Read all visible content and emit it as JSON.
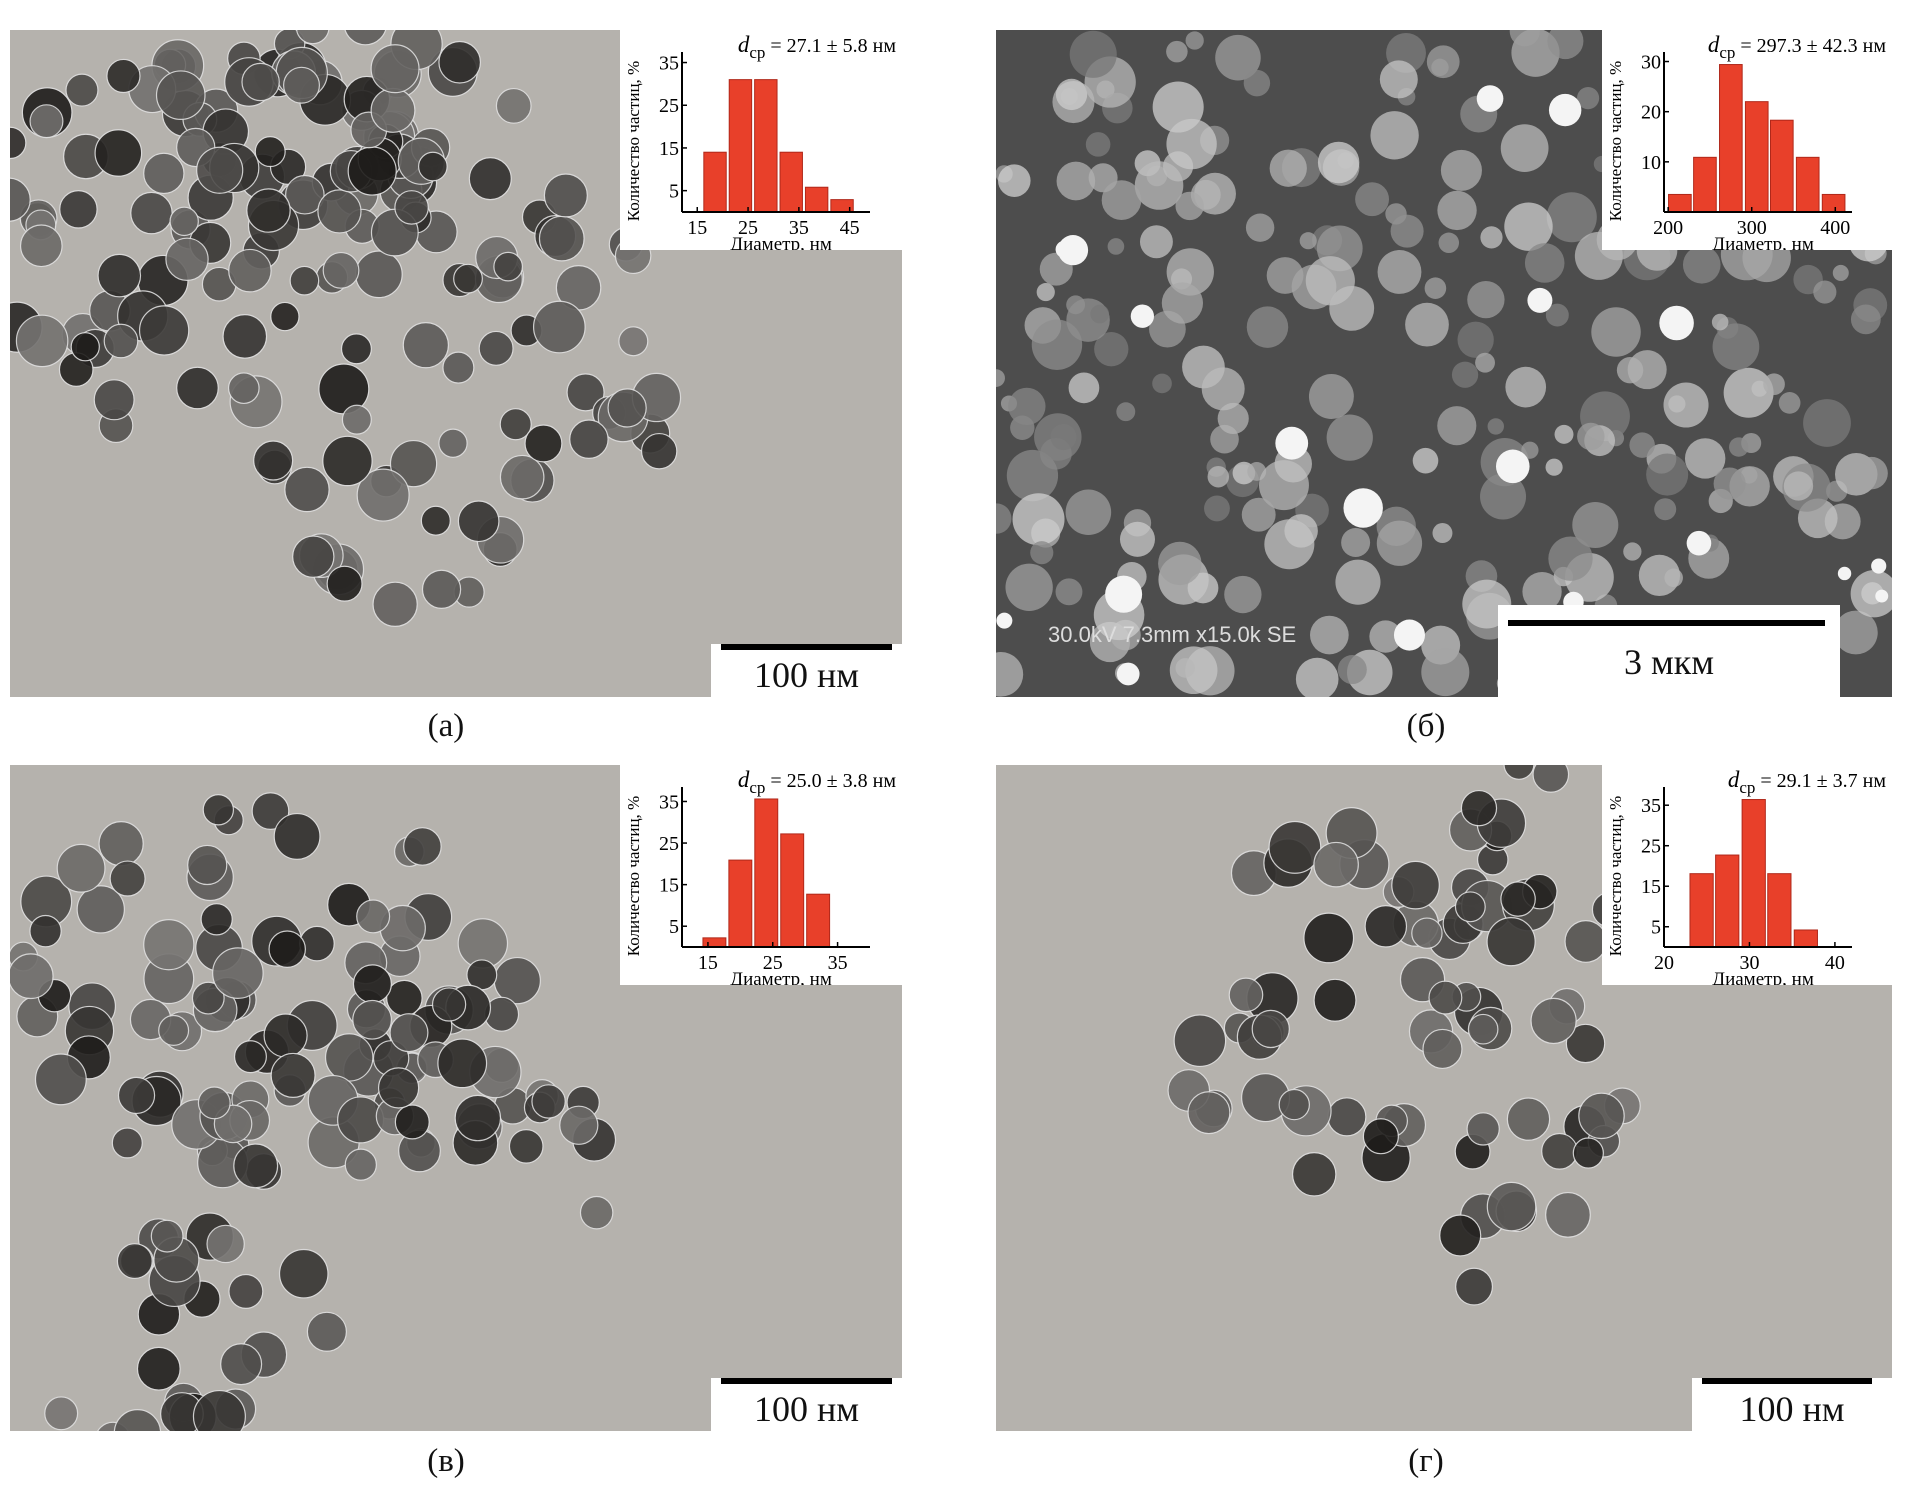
{
  "panels": [
    {
      "caption": "(а)",
      "kind": "TEM",
      "scale_label": "100 нм"
    },
    {
      "caption": "(б)",
      "kind": "SEM",
      "scale_label": "3 мкм",
      "sem_info": "30.0kV 7.3mm x15.0k SE"
    },
    {
      "caption": "(в)",
      "kind": "TEM",
      "scale_label": "100 нм"
    },
    {
      "caption": "(г)",
      "kind": "TEM",
      "scale_label": "100 нм"
    }
  ],
  "colors": {
    "bar": "#e8402a",
    "tem_background": "#b5b2ad",
    "sem_background": "#4d4d4d"
  },
  "chart_data": [
    {
      "type": "bar",
      "panel": "(а)",
      "annotation": {
        "symbol": "d",
        "subscript": "ср",
        "text": " = 27.1 ± 5.8 нм"
      },
      "xlabel": "Диаметр, нм",
      "ylabel": "Количество частиц, %",
      "xticks": [
        15,
        25,
        35,
        45
      ],
      "yticks": [
        5,
        15,
        25,
        35
      ],
      "xlim": [
        12,
        49
      ],
      "ylim": [
        0,
        37
      ],
      "bin_width": 5,
      "bin_centers": [
        18.5,
        23.5,
        28.5,
        33.5,
        38.5,
        43.5
      ],
      "values": [
        14,
        31,
        31,
        14,
        5.8,
        2.9
      ]
    },
    {
      "type": "bar",
      "panel": "(б)",
      "annotation": {
        "symbol": "d",
        "subscript": "ср",
        "text": " = 297.3 ± 42.3 нм"
      },
      "xlabel": "Диаметр, нм",
      "ylabel": "Количество частиц, %",
      "xticks": [
        200,
        300,
        400
      ],
      "yticks": [
        10,
        20,
        30
      ],
      "xlim": [
        195,
        420
      ],
      "ylim": [
        0,
        31.5
      ],
      "bin_width": 30.7,
      "bin_centers": [
        214,
        244,
        275,
        306,
        336,
        367,
        398
      ],
      "values": [
        3.5,
        10.9,
        29.4,
        22,
        18.3,
        10.9,
        3.5
      ]
    },
    {
      "type": "bar",
      "panel": "(в)",
      "annotation": {
        "symbol": "d",
        "subscript": "ср",
        "text": " = 25.0 ± 3.8 нм"
      },
      "xlabel": "Диаметр, нм",
      "ylabel": "Количество частиц, %",
      "xticks": [
        15,
        25,
        35
      ],
      "yticks": [
        5,
        15,
        25,
        35
      ],
      "xlim": [
        11,
        40
      ],
      "ylim": [
        0,
        38
      ],
      "bin_width": 4,
      "bin_centers": [
        16,
        20,
        24,
        28,
        32
      ],
      "values": [
        2.2,
        20.9,
        35.6,
        27.2,
        12.7
      ]
    },
    {
      "type": "bar",
      "panel": "(г)",
      "annotation": {
        "symbol": "d",
        "subscript": "ср",
        "text": " = 29.1 ± 3.7 нм"
      },
      "xlabel": "Диаметр, нм",
      "ylabel": "Количество частиц, %",
      "xticks": [
        20,
        30,
        40
      ],
      "yticks": [
        5,
        15,
        25,
        35
      ],
      "xlim": [
        20,
        42
      ],
      "ylim": [
        0,
        39
      ],
      "bin_width": 3.07,
      "bin_centers": [
        24.4,
        27.4,
        30.5,
        33.5,
        36.6
      ],
      "values": [
        18.1,
        22.7,
        36.4,
        18.1,
        4.2
      ]
    }
  ]
}
